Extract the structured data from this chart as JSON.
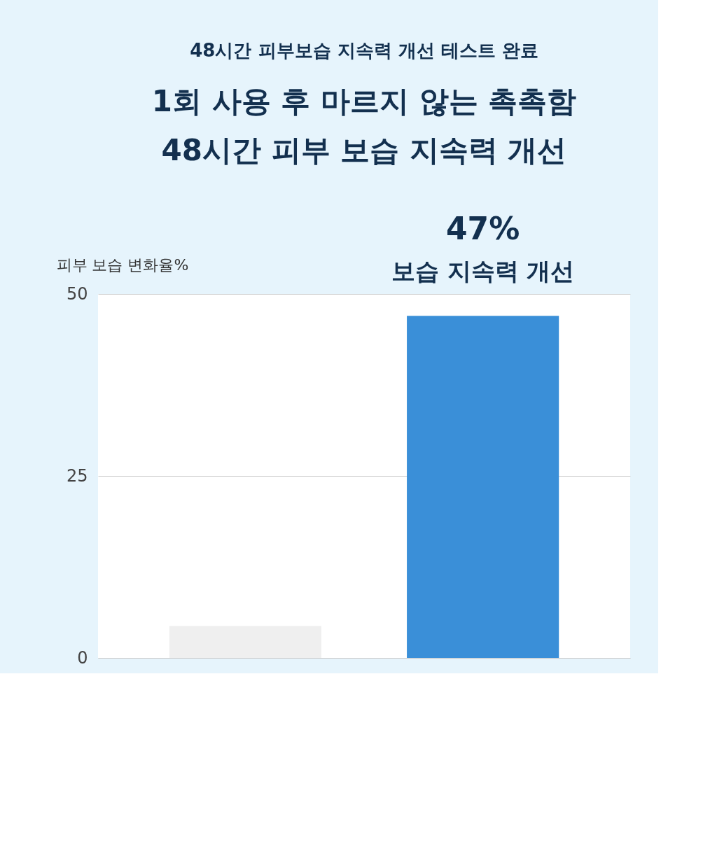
{
  "chart_data": {
    "type": "bar",
    "title": "48시간 피부보습 지속력 개선 테스트 완료",
    "subtitle": [
      "1회 사용 후 마르지 않는 촉촉함",
      "48시간 피부 보습 지속력 개선"
    ],
    "ylabel": "피부 보습 변화율%",
    "categories": [
      null,
      null
    ],
    "values": [
      4.4,
      47
    ],
    "colors": [
      "#efefef",
      "#3a8fd8"
    ],
    "value_labels": [
      null,
      "47%"
    ],
    "annotations": [
      "보습 지속력 개선"
    ],
    "ylim": [
      0,
      50
    ],
    "yticks": [
      0,
      25,
      50
    ],
    "grid": "y",
    "tick_labels": "y"
  }
}
